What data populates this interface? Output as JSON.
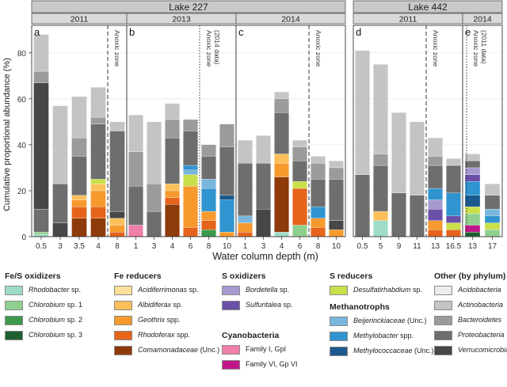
{
  "ylabel": "Cumulative proportional abundance (%)",
  "xlabel": "Water column depth (m)",
  "yticks": [
    "0",
    "20",
    "40",
    "60",
    "80"
  ],
  "lakes": [
    "Lake 227",
    "Lake 442"
  ],
  "strips": [
    "2011",
    "2013",
    "2014",
    "2011",
    "2014"
  ],
  "panel_letters": [
    "a",
    "b",
    "c",
    "d",
    "e"
  ],
  "zone_labels": [
    {
      "line1": "Anoxic zone",
      "line2": ""
    },
    {
      "line1": "Anoxic zone",
      "line2": "(2014 data)"
    },
    {
      "line1": "Anoxic zone",
      "line2": ""
    },
    {
      "line1": "Anoxic zone",
      "line2": ""
    },
    {
      "line1": "Anoxic zone",
      "line2": "(2011 data)"
    }
  ],
  "colors": {
    "Rhodobacter": "#9edcc9",
    "Chlorobium1": "#8fd08f",
    "Chlorobium2": "#3c9a4a",
    "Chlorobium3": "#1f5f2f",
    "Acidiferrimonas": "#fde09a",
    "Albidiferax": "#fbc05a",
    "Geothrix": "#f79a2e",
    "Rhodoferax": "#e5641a",
    "Comamonadaceae": "#8e3a0a",
    "Bordetella": "#a69ad0",
    "Sulfuritalea": "#6a4fa8",
    "CyanoGpI": "#ef7fa8",
    "CyanoGpVI": "#c0168a",
    "Desulfatirhabdium": "#c9e04a",
    "Beijerinckiaceae": "#79b6dc",
    "Methylobacter": "#2f94cf",
    "Methylococcaceae": "#1a5a8f",
    "Acidobacteria": "#ececec",
    "Actinobacteria": "#c4c4c4",
    "Bacteroidetes": "#9b9b9b",
    "Proteobacteria": "#6e6e6e",
    "Verrucomicrobia": "#474747"
  },
  "legend": {
    "groups": [
      {
        "title": "Fe/S oxidizers",
        "items": [
          {
            "key": "Rhodobacter",
            "name": "Rhodobacter",
            "suffix": " sp."
          },
          {
            "key": "Chlorobium1",
            "name": "Chlorobium",
            "suffix": " sp. 1"
          },
          {
            "key": "Chlorobium2",
            "name": "Chlorobium",
            "suffix": " sp. 2"
          },
          {
            "key": "Chlorobium3",
            "name": "Chlorobium",
            "suffix": " sp. 3"
          }
        ]
      },
      {
        "title": "Fe reducers",
        "items": [
          {
            "key": "Acidiferrimonas",
            "name": "Acidiferrimonas",
            "suffix": " sp."
          },
          {
            "key": "Albidiferax",
            "name": "Albidiferax",
            "suffix": " sp."
          },
          {
            "key": "Geothrix",
            "name": "Geothrix",
            "suffix": " spp."
          },
          {
            "key": "Rhodoferax",
            "name": "Rhodoferax",
            "suffix": " spp."
          },
          {
            "key": "Comamonadaceae",
            "name": "Comamonadaceae",
            "suffix": " (Unc.)"
          }
        ]
      },
      {
        "title": "S oxidizers",
        "items": [
          {
            "key": "Bordetella",
            "name": "Bordetella",
            "suffix": " sp."
          },
          {
            "key": "Sulfuritalea",
            "name": "Sulfuritalea",
            "suffix": " sp."
          }
        ]
      },
      {
        "title": "Cyanobacteria",
        "items": [
          {
            "key": "CyanoGpI",
            "name": "",
            "suffix": "Family I, GpI"
          },
          {
            "key": "CyanoGpVI",
            "name": "",
            "suffix": "Family VI, Gp VI"
          }
        ]
      },
      {
        "title": "S reducers",
        "items": [
          {
            "key": "Desulfatirhabdium",
            "name": "Desulfatirhabdium",
            "suffix": " sp."
          }
        ]
      },
      {
        "title": "Methanotrophs",
        "items": [
          {
            "key": "Beijerinckiaceae",
            "name": "Beijerinckiaceae",
            "suffix": " (Unc.)"
          },
          {
            "key": "Methylobacter",
            "name": "Methylobacter",
            "suffix": " spp."
          },
          {
            "key": "Methylococcaceae",
            "name": "Methylococcaceae",
            "suffix": " (Unc.)"
          }
        ]
      },
      {
        "title": "Other (by phylum)",
        "items": [
          {
            "key": "Acidobacteria",
            "name": "Acidobacteria",
            "suffix": ""
          },
          {
            "key": "Actinobacteria",
            "name": "Actinobacteria",
            "suffix": ""
          },
          {
            "key": "Bacteroidetes",
            "name": "Bacteroidetes",
            "suffix": ""
          },
          {
            "key": "Proteobacteria",
            "name": "Proteobacteria",
            "suffix": ""
          },
          {
            "key": "Verrucomicrobia",
            "name": "Verrucomicrobia",
            "suffix": ""
          }
        ]
      }
    ]
  },
  "chart_data": {
    "type": "bar",
    "stacked": true,
    "ylabel": "Cumulative proportional abundance (%)",
    "xlabel": "Water column depth (m)",
    "ylim": [
      0,
      92
    ],
    "grid": true,
    "panels": [
      {
        "lake": "Lake 227",
        "year": "2011",
        "letter": "a",
        "anoxic_after": 4,
        "line_style": "dashed",
        "depths": [
          "0.5",
          "3",
          "3.5",
          "4",
          "8"
        ],
        "bars": [
          [
            {
              "k": "Rhodobacter",
              "v": 1
            },
            {
              "k": "Chlorobium1",
              "v": 1
            },
            {
              "k": "Proteobacteria",
              "v": 10
            },
            {
              "k": "Verrucomicrobia",
              "v": 55
            },
            {
              "k": "Bacteroidetes",
              "v": 5
            },
            {
              "k": "Actinobacteria",
              "v": 16
            }
          ],
          [
            {
              "k": "Verrucomicrobia",
              "v": 6
            },
            {
              "k": "Proteobacteria",
              "v": 17
            },
            {
              "k": "Actinobacteria",
              "v": 34
            }
          ],
          [
            {
              "k": "Comamonadaceae",
              "v": 8
            },
            {
              "k": "Rhodoferax",
              "v": 5
            },
            {
              "k": "Geothrix",
              "v": 3
            },
            {
              "k": "Albidiferax",
              "v": 2
            },
            {
              "k": "Proteobacteria",
              "v": 17
            },
            {
              "k": "Bacteroidetes",
              "v": 8
            },
            {
              "k": "Actinobacteria",
              "v": 18
            }
          ],
          [
            {
              "k": "Comamonadaceae",
              "v": 8
            },
            {
              "k": "Rhodoferax",
              "v": 5
            },
            {
              "k": "Geothrix",
              "v": 7
            },
            {
              "k": "Albidiferax",
              "v": 3
            },
            {
              "k": "Desulfatirhabdium",
              "v": 2
            },
            {
              "k": "Proteobacteria",
              "v": 24
            },
            {
              "k": "Bacteroidetes",
              "v": 3
            },
            {
              "k": "Actinobacteria",
              "v": 13
            }
          ],
          [
            {
              "k": "Rhodoferax",
              "v": 2
            },
            {
              "k": "Geothrix",
              "v": 3
            },
            {
              "k": "Albidiferax",
              "v": 3
            },
            {
              "k": "Verrucomicrobia",
              "v": 3
            },
            {
              "k": "Proteobacteria",
              "v": 35
            },
            {
              "k": "Actinobacteria",
              "v": 4
            }
          ]
        ]
      },
      {
        "lake": "Lake 227",
        "year": "2013",
        "letter": "b",
        "anoxic_after": 6,
        "line_style": "dotted",
        "depths": [
          "1",
          "3",
          "4",
          "6",
          "8",
          "10"
        ],
        "bars": [
          [
            {
              "k": "CyanoGpI",
              "v": 5
            },
            {
              "k": "Proteobacteria",
              "v": 17
            },
            {
              "k": "Bacteroidetes",
              "v": 15
            },
            {
              "k": "Actinobacteria",
              "v": 16
            }
          ],
          [
            {
              "k": "Proteobacteria",
              "v": 11
            },
            {
              "k": "Bacteroidetes",
              "v": 12
            },
            {
              "k": "Actinobacteria",
              "v": 27
            }
          ],
          [
            {
              "k": "Comamonadaceae",
              "v": 14
            },
            {
              "k": "Rhodoferax",
              "v": 3
            },
            {
              "k": "Geothrix",
              "v": 3
            },
            {
              "k": "Albidiferax",
              "v": 3
            },
            {
              "k": "Proteobacteria",
              "v": 20
            },
            {
              "k": "Bacteroidetes",
              "v": 8
            },
            {
              "k": "Actinobacteria",
              "v": 7
            }
          ],
          [
            {
              "k": "Rhodoferax",
              "v": 4
            },
            {
              "k": "Geothrix",
              "v": 18
            },
            {
              "k": "Desulfatirhabdium",
              "v": 5
            },
            {
              "k": "Beijerinckiaceae",
              "v": 2
            },
            {
              "k": "Methylobacter",
              "v": 2
            },
            {
              "k": "Proteobacteria",
              "v": 15
            },
            {
              "k": "Bacteroidetes",
              "v": 5
            }
          ],
          [
            {
              "k": "Chlorobium2",
              "v": 3
            },
            {
              "k": "Rhodoferax",
              "v": 4
            },
            {
              "k": "Geothrix",
              "v": 4
            },
            {
              "k": "Methylobacter",
              "v": 10
            },
            {
              "k": "Beijerinckiaceae",
              "v": 4
            },
            {
              "k": "Proteobacteria",
              "v": 10
            },
            {
              "k": "Bacteroidetes",
              "v": 5
            }
          ],
          [
            {
              "k": "Geothrix",
              "v": 2
            },
            {
              "k": "Methylobacter",
              "v": 14
            },
            {
              "k": "Methylococcaceae",
              "v": 2
            },
            {
              "k": "Proteobacteria",
              "v": 21
            },
            {
              "k": "Bacteroidetes",
              "v": 10
            }
          ]
        ]
      },
      {
        "lake": "Lake 227",
        "year": "2014",
        "letter": "c",
        "anoxic_after": 6,
        "line_style": "dashed",
        "depths": [
          "1",
          "3",
          "4",
          "6",
          "8",
          "10"
        ],
        "bars": [
          [
            {
              "k": "Rhodoferax",
              "v": 2
            },
            {
              "k": "Geothrix",
              "v": 4
            },
            {
              "k": "Beijerinckiaceae",
              "v": 3
            },
            {
              "k": "Proteobacteria",
              "v": 23
            },
            {
              "k": "Actinobacteria",
              "v": 10
            }
          ],
          [
            {
              "k": "Verrucomicrobia",
              "v": 12
            },
            {
              "k": "Proteobacteria",
              "v": 20
            },
            {
              "k": "Actinobacteria",
              "v": 12
            }
          ],
          [
            {
              "k": "Rhodobacter",
              "v": 2
            },
            {
              "k": "Comamonadaceae",
              "v": 24
            },
            {
              "k": "Geothrix",
              "v": 6
            },
            {
              "k": "Albidiferax",
              "v": 4
            },
            {
              "k": "Proteobacteria",
              "v": 18
            },
            {
              "k": "Bacteroidetes",
              "v": 6
            },
            {
              "k": "Actinobacteria",
              "v": 3
            }
          ],
          [
            {
              "k": "Chlorobium1",
              "v": 5
            },
            {
              "k": "Rhodoferax",
              "v": 16
            },
            {
              "k": "Desulfatirhabdium",
              "v": 3
            },
            {
              "k": "Proteobacteria",
              "v": 9
            },
            {
              "k": "Bacteroidetes",
              "v": 6
            },
            {
              "k": "Actinobacteria",
              "v": 3
            }
          ],
          [
            {
              "k": "Rhodoferax",
              "v": 4
            },
            {
              "k": "Geothrix",
              "v": 4
            },
            {
              "k": "Methylobacter",
              "v": 5
            },
            {
              "k": "Proteobacteria",
              "v": 12
            },
            {
              "k": "Bacteroidetes",
              "v": 7
            },
            {
              "k": "Actinobacteria",
              "v": 3
            }
          ],
          [
            {
              "k": "Geothrix",
              "v": 3
            },
            {
              "k": "Verrucomicrobia",
              "v": 4
            },
            {
              "k": "Proteobacteria",
              "v": 18
            },
            {
              "k": "Bacteroidetes",
              "v": 5
            },
            {
              "k": "Actinobacteria",
              "v": 3
            }
          ]
        ]
      },
      {
        "lake": "Lake 442",
        "year": "2011",
        "letter": "d",
        "anoxic_after": 11,
        "line_style": "dashed",
        "depths": [
          "0.5",
          "5",
          "9",
          "11",
          "13",
          "16.5"
        ],
        "bars": [
          [
            {
              "k": "Proteobacteria",
              "v": 27
            },
            {
              "k": "Actinobacteria",
              "v": 54
            }
          ],
          [
            {
              "k": "Rhodobacter",
              "v": 7
            },
            {
              "k": "Albidiferax",
              "v": 4
            },
            {
              "k": "Proteobacteria",
              "v": 20
            },
            {
              "k": "Bacteroidetes",
              "v": 5
            },
            {
              "k": "Actinobacteria",
              "v": 39
            }
          ],
          [
            {
              "k": "Proteobacteria",
              "v": 19
            },
            {
              "k": "Actinobacteria",
              "v": 35
            }
          ],
          [
            {
              "k": "Proteobacteria",
              "v": 18
            },
            {
              "k": "Actinobacteria",
              "v": 32
            }
          ],
          [
            {
              "k": "Rhodoferax",
              "v": 3
            },
            {
              "k": "Geothrix",
              "v": 4
            },
            {
              "k": "Sulfuritalea",
              "v": 5
            },
            {
              "k": "Bordetella",
              "v": 4
            },
            {
              "k": "Methylobacter",
              "v": 5
            },
            {
              "k": "Proteobacteria",
              "v": 10
            },
            {
              "k": "Bacteroidetes",
              "v": 4
            },
            {
              "k": "Actinobacteria",
              "v": 8
            }
          ],
          [
            {
              "k": "Rhodoferax",
              "v": 3
            },
            {
              "k": "Desulfatirhabdium",
              "v": 3
            },
            {
              "k": "Sulfuritalea",
              "v": 3
            },
            {
              "k": "Methylobacter",
              "v": 10
            },
            {
              "k": "Proteobacteria",
              "v": 12
            },
            {
              "k": "Actinobacteria",
              "v": 3
            }
          ]
        ]
      },
      {
        "lake": "Lake 442",
        "year": "2014",
        "letter": "e",
        "anoxic_after": 0,
        "line_style": "dotted",
        "depths": [
          "13",
          "17"
        ],
        "bars": [
          [
            {
              "k": "Chlorobium3",
              "v": 2
            },
            {
              "k": "CyanoGpVI",
              "v": 3
            },
            {
              "k": "Chlorobium1",
              "v": 5
            },
            {
              "k": "Desulfatirhabdium",
              "v": 3
            },
            {
              "k": "Methylococcaceae",
              "v": 5
            },
            {
              "k": "Methylobacter",
              "v": 6
            },
            {
              "k": "Sulfuritalea",
              "v": 3
            },
            {
              "k": "Bordetella",
              "v": 3
            },
            {
              "k": "Proteobacteria",
              "v": 3
            },
            {
              "k": "Actinobacteria",
              "v": 3
            }
          ],
          [
            {
              "k": "Chlorobium1",
              "v": 3
            },
            {
              "k": "Desulfatirhabdium",
              "v": 3
            },
            {
              "k": "Methylobacter",
              "v": 3
            },
            {
              "k": "Beijerinckiaceae",
              "v": 3
            },
            {
              "k": "Proteobacteria",
              "v": 6
            },
            {
              "k": "Actinobacteria",
              "v": 5
            }
          ]
        ]
      }
    ]
  }
}
